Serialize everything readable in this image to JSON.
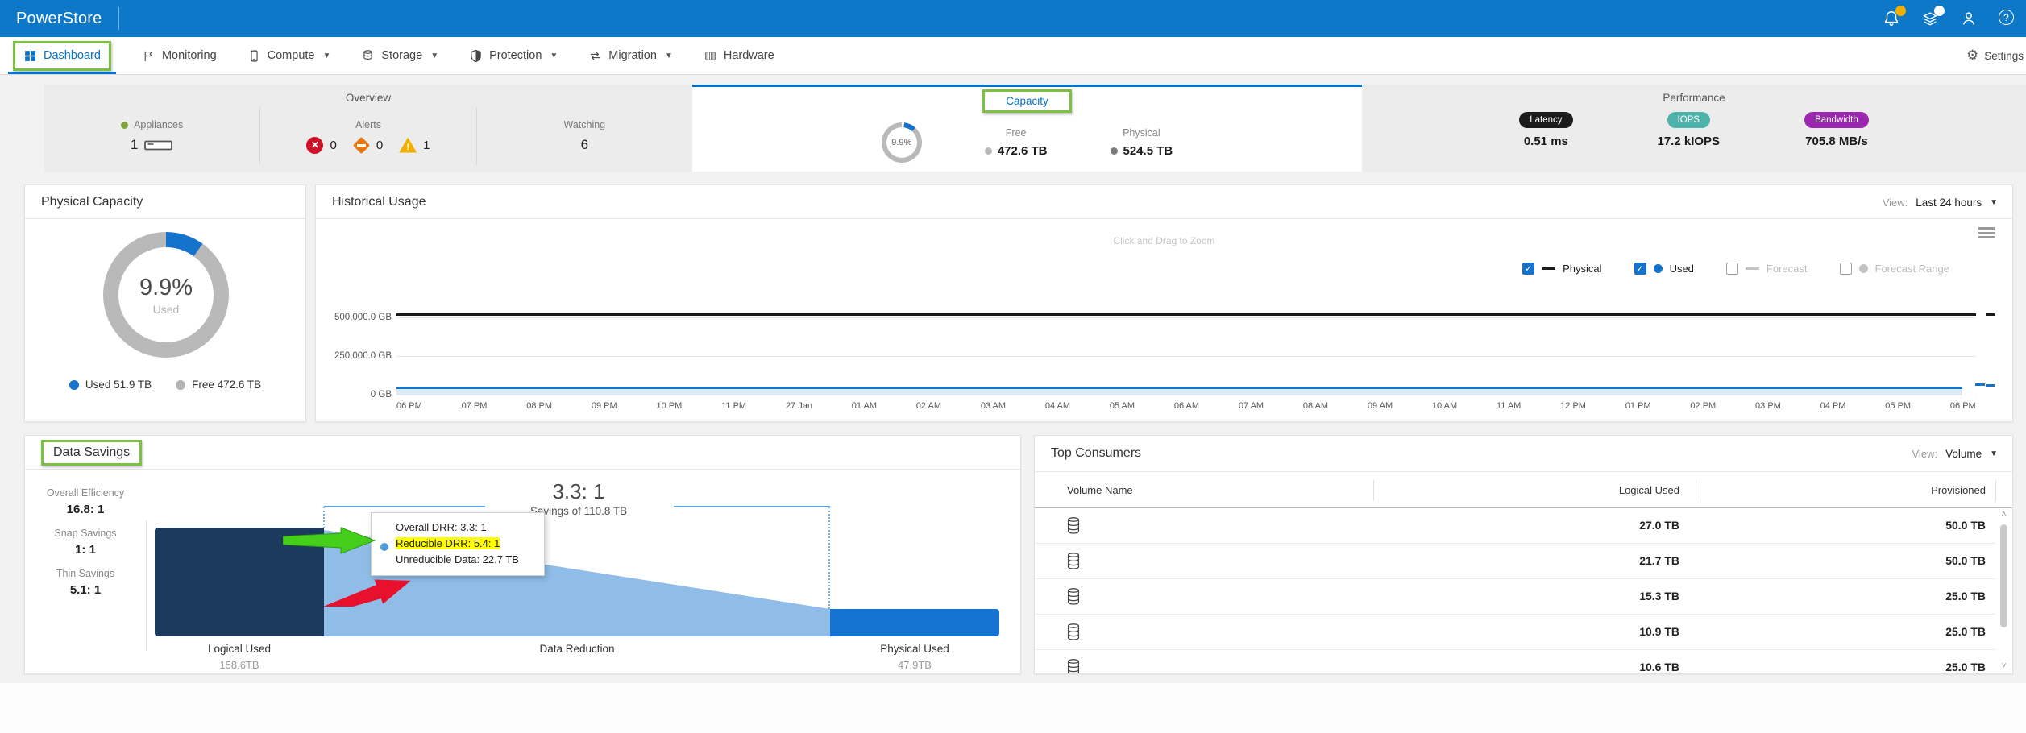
{
  "header": {
    "brand": "PowerStore"
  },
  "nav": {
    "items": [
      {
        "label": "Dashboard"
      },
      {
        "label": "Monitoring"
      },
      {
        "label": "Compute"
      },
      {
        "label": "Storage"
      },
      {
        "label": "Protection"
      },
      {
        "label": "Migration"
      },
      {
        "label": "Hardware"
      }
    ],
    "settings_label": "Settings"
  },
  "summary": {
    "overview": {
      "title": "Overview",
      "appliances_label": "Appliances",
      "appliances_value": "1",
      "alerts_label": "Alerts",
      "alerts": {
        "critical": "0",
        "major": "0",
        "minor": "1"
      },
      "watching_label": "Watching",
      "watching_value": "6"
    },
    "capacity": {
      "title": "Capacity",
      "donut_percent": "9.9%",
      "donut_percent_value": 9.9,
      "free_label": "Free",
      "free_value": "472.6 TB",
      "physical_label": "Physical",
      "physical_value": "524.5 TB"
    },
    "performance": {
      "title": "Performance",
      "metrics": [
        {
          "label": "Latency",
          "value": "0.51 ms",
          "color": "#1b1b1b"
        },
        {
          "label": "IOPS",
          "value": "17.2 kIOPS",
          "color": "#4fb3ac"
        },
        {
          "label": "Bandwidth",
          "value": "705.8 MB/s",
          "color": "#9b26af"
        }
      ]
    }
  },
  "physical_capacity": {
    "title": "Physical Capacity",
    "percent": "9.9%",
    "percent_value": 9.9,
    "center_label": "Used",
    "legend": [
      {
        "label": "Used 51.9 TB",
        "color": "#1673cc"
      },
      {
        "label": "Free 472.6 TB",
        "color": "#b3b3b3"
      }
    ]
  },
  "historical_usage": {
    "title": "Historical Usage",
    "view_label": "View:",
    "view_value": "Last 24 hours",
    "hint": "Click and Drag to Zoom",
    "legend": [
      {
        "label": "Physical",
        "checked": true,
        "marker": "line",
        "color": "#1a1a1a"
      },
      {
        "label": "Used",
        "checked": true,
        "marker": "dot",
        "color": "#1673cc"
      },
      {
        "label": "Forecast",
        "checked": false,
        "marker": "line",
        "color": "#c4c4c4"
      },
      {
        "label": "Forecast Range",
        "checked": false,
        "marker": "dot",
        "color": "#c4c4c4"
      }
    ],
    "chart_data": {
      "type": "line",
      "x": [
        "06 PM",
        "07 PM",
        "08 PM",
        "09 PM",
        "10 PM",
        "11 PM",
        "27 Jan",
        "01 AM",
        "02 AM",
        "03 AM",
        "04 AM",
        "05 AM",
        "06 AM",
        "07 AM",
        "08 AM",
        "09 AM",
        "10 AM",
        "11 AM",
        "12 PM",
        "01 PM",
        "02 PM",
        "03 PM",
        "04 PM",
        "05 PM",
        "06 PM"
      ],
      "y_ticks": [
        "500,000.0 GB",
        "250,000.0 GB",
        "0 GB"
      ],
      "ylim_gb": [
        0,
        550000
      ],
      "grid": true,
      "legend_position": "top-right",
      "series": [
        {
          "name": "Physical",
          "color": "#1a1a1a",
          "style": "flat-line",
          "approx_value_gb": 524500
        },
        {
          "name": "Used",
          "color": "#1673cc",
          "style": "flat-line-area",
          "approx_value_gb": 51900
        }
      ]
    }
  },
  "data_savings": {
    "title": "Data Savings",
    "stats": [
      {
        "label": "Overall Efficiency",
        "value": "16.8: 1"
      },
      {
        "label": "Snap Savings",
        "value": "1: 1"
      },
      {
        "label": "Thin Savings",
        "value": "5.1: 1"
      }
    ],
    "chart_data": {
      "type": "funnel",
      "ratio_title": "3.3: 1",
      "ratio_subtitle": "Savings of 110.8 TB",
      "stages": [
        {
          "label": "Logical Used",
          "value": "158.6TB"
        },
        {
          "label": "Data Reduction",
          "value": ""
        },
        {
          "label": "Physical Used",
          "value": "47.9TB"
        }
      ],
      "colors": {
        "logical": "#1b3a5e",
        "reduction": "#8fbde8",
        "physical": "#1573d1"
      }
    },
    "tooltip": {
      "rows": [
        {
          "text": "Overall DRR: 3.3: 1",
          "highlight": false
        },
        {
          "text": "Reducible DRR: 5.4: 1",
          "highlight": true
        },
        {
          "text": "Unreducible Data: 22.7 TB",
          "highlight": false
        }
      ]
    }
  },
  "top_consumers": {
    "title": "Top Consumers",
    "view_label": "View:",
    "view_value": "Volume",
    "columns": [
      "Volume Name",
      "Logical Used",
      "Provisioned"
    ],
    "rows": [
      {
        "name": "",
        "logical_used": "27.0 TB",
        "provisioned": "50.0 TB"
      },
      {
        "name": "",
        "logical_used": "21.7 TB",
        "provisioned": "50.0 TB"
      },
      {
        "name": "",
        "logical_used": "15.3 TB",
        "provisioned": "25.0 TB"
      },
      {
        "name": "",
        "logical_used": "10.9 TB",
        "provisioned": "25.0 TB"
      },
      {
        "name": "",
        "logical_used": "10.6 TB",
        "provisioned": "25.0 TB"
      }
    ]
  },
  "annotation_color": "#7cc142"
}
